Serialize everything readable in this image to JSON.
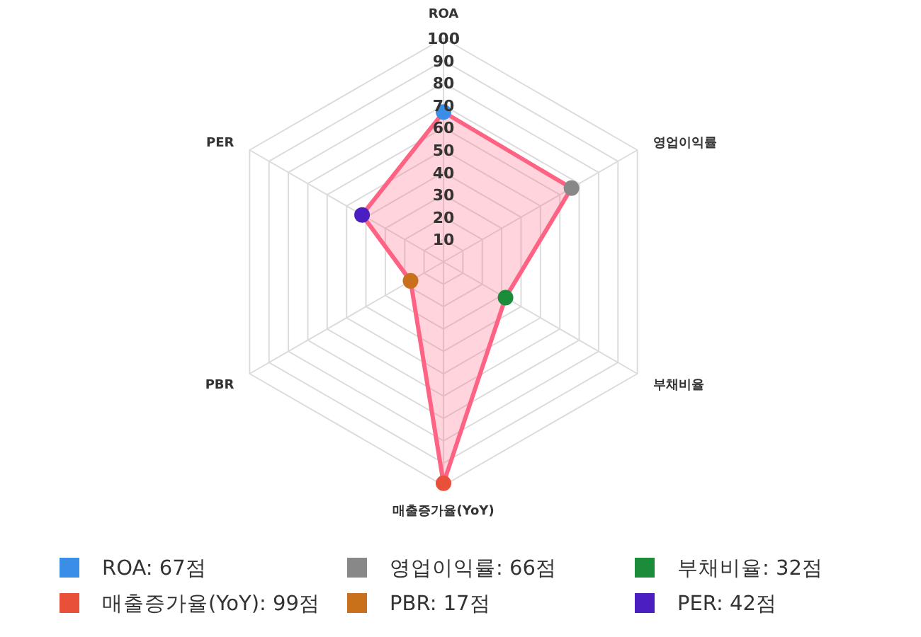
{
  "chart_data": {
    "type": "radar",
    "categories": [
      "ROA",
      "영업이익률",
      "부채비율",
      "매출증가율(YoY)",
      "PBR",
      "PER"
    ],
    "series": [
      {
        "color": "#ff6384",
        "values": [
          67,
          66,
          32,
          99,
          17,
          42
        ],
        "colors": [
          "#3a8ee6",
          "#888888",
          "#1a8c3a",
          "#e8503a",
          "#c8711a",
          "#4a1ec0"
        ]
      }
    ],
    "ylim": [
      0,
      100
    ],
    "yticks": [
      10,
      20,
      30,
      40,
      50,
      60,
      70,
      80,
      90,
      100
    ],
    "grid": true,
    "marker": "circle",
    "annotations": [
      "ROA: 67점",
      "영업이익률: 66점",
      "부채비율: 32점",
      "매출증가율(YoY): 99점",
      "PBR: 17점",
      "PER: 42점"
    ]
  }
}
